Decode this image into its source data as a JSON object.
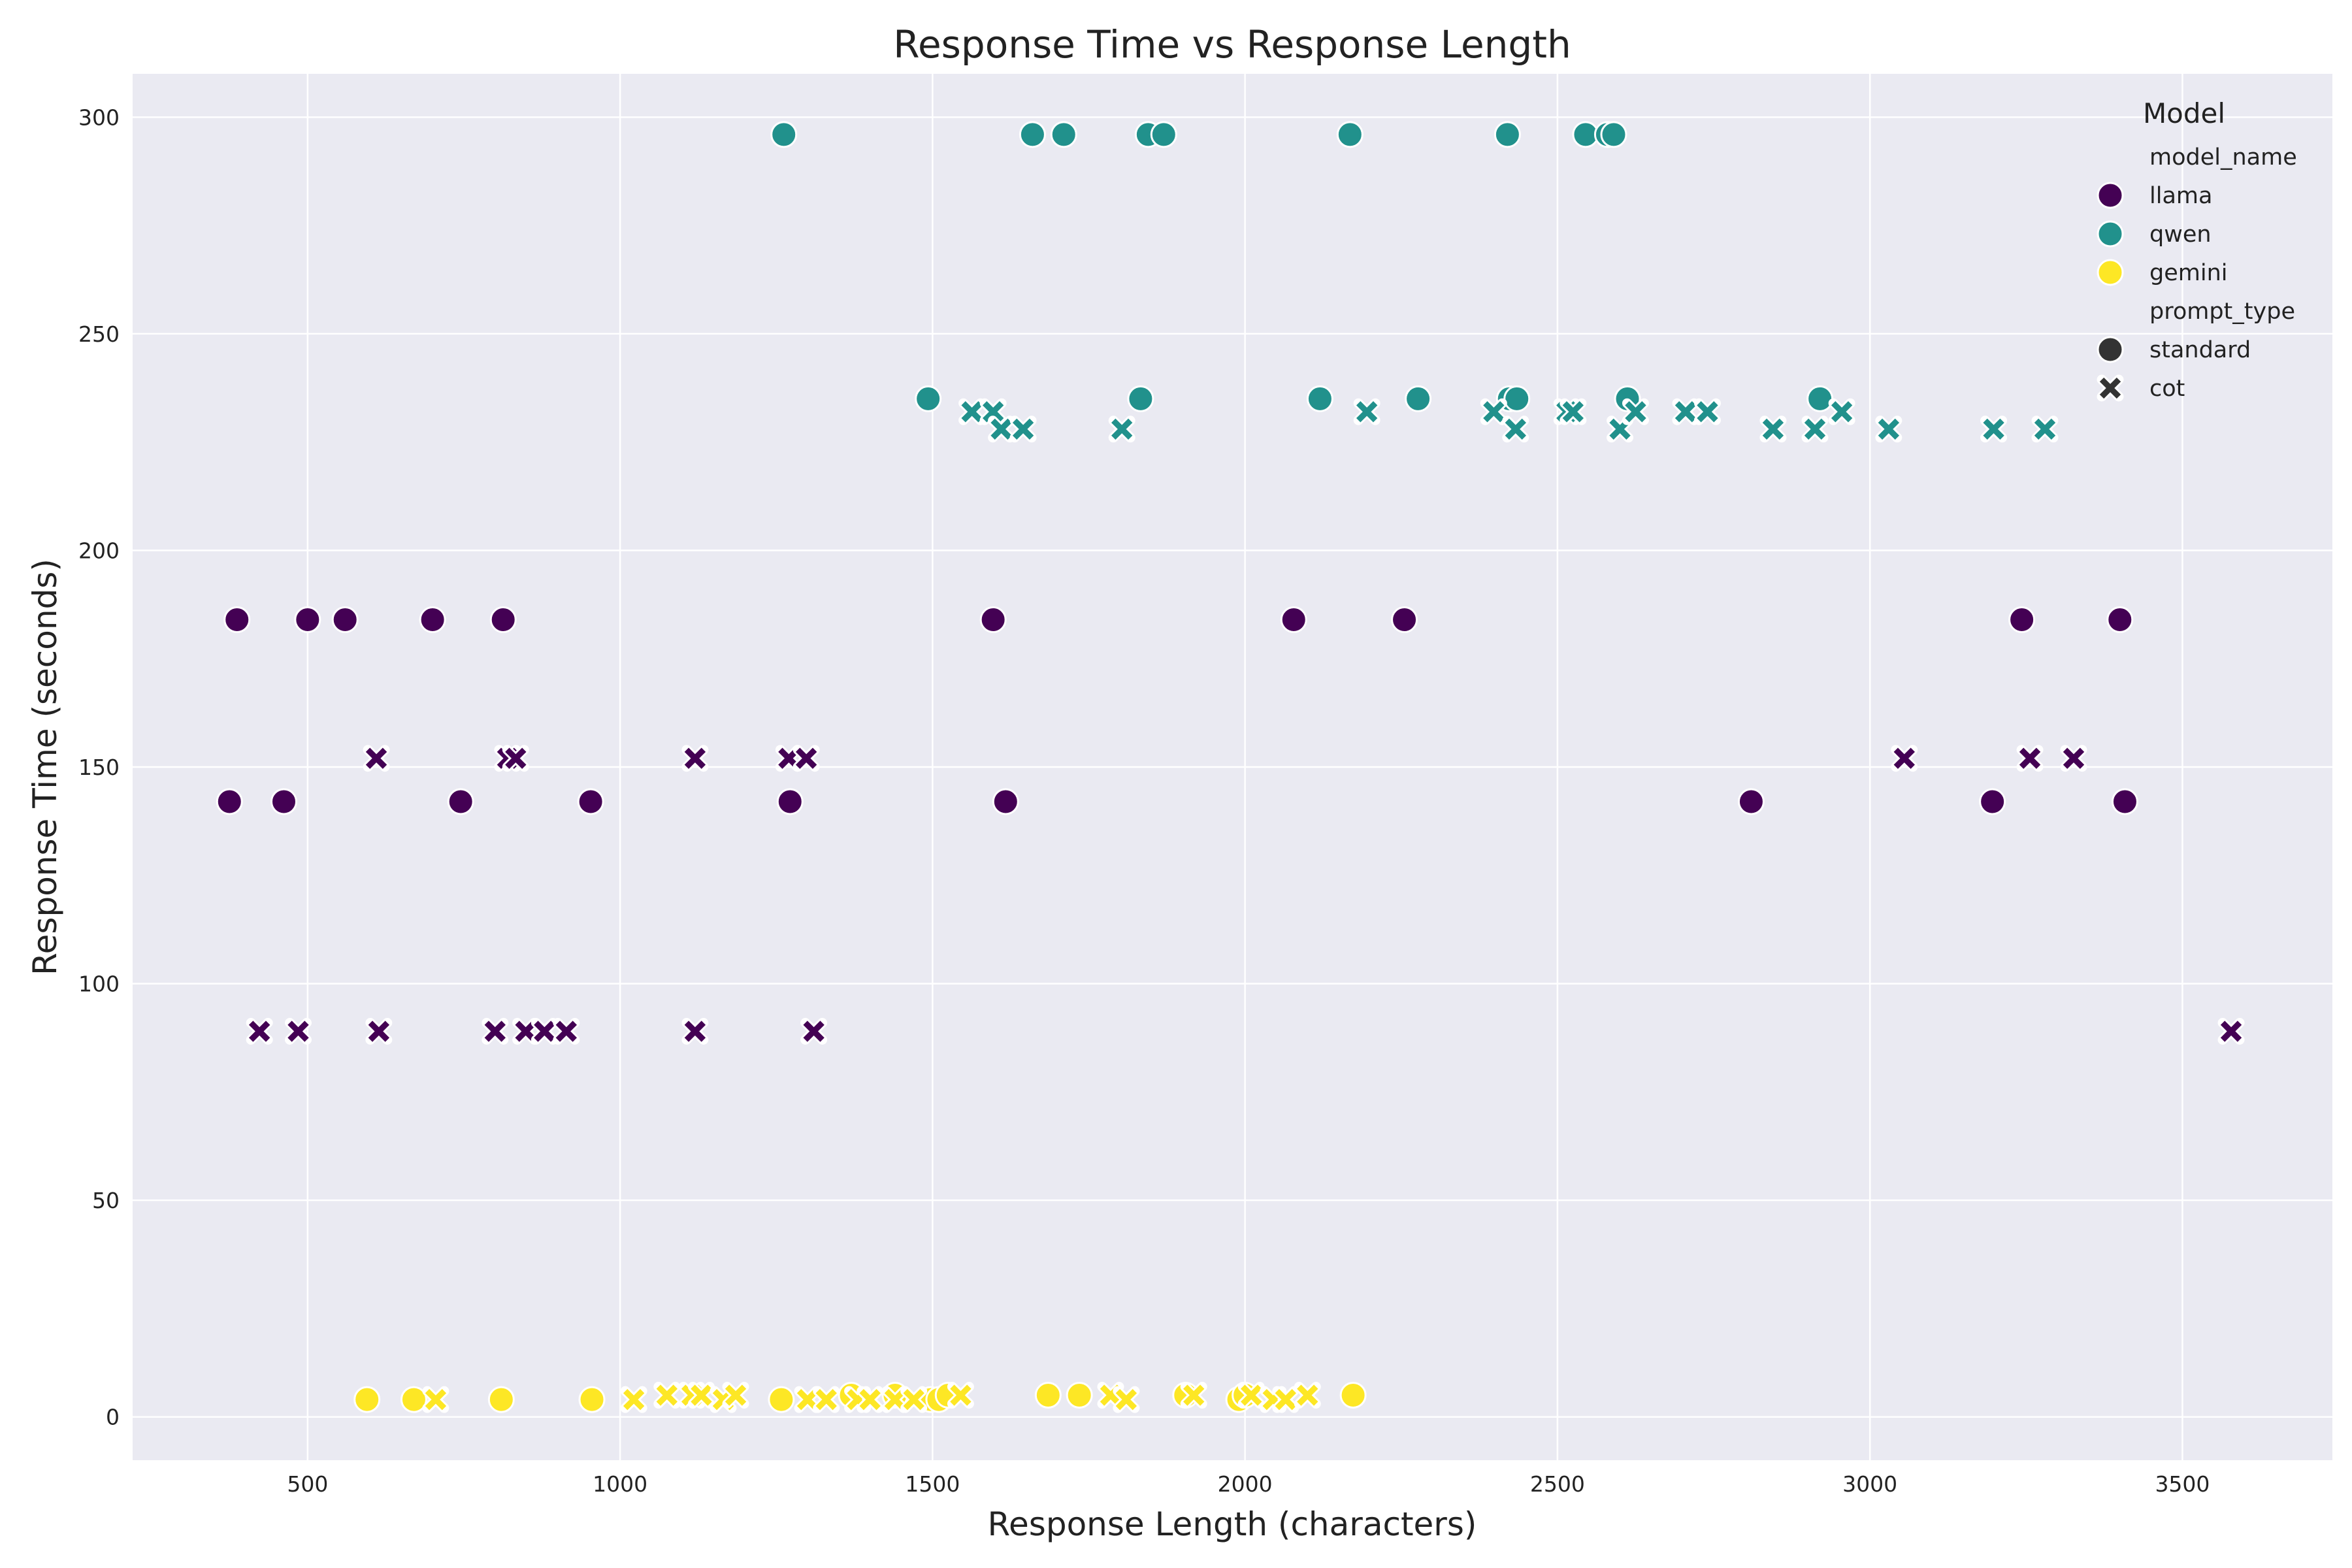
{
  "chart_data": {
    "type": "scatter",
    "title": "Response Time vs Response Length",
    "xlabel": "Response Length (characters)",
    "ylabel": "Response Time (seconds)",
    "xlim": [
      220,
      3740
    ],
    "ylim": [
      -10,
      310
    ],
    "xticks": [
      500,
      1000,
      1500,
      2000,
      2500,
      3000,
      3500
    ],
    "yticks": [
      0,
      50,
      100,
      150,
      200,
      250,
      300
    ],
    "grid": true,
    "legend": {
      "placement": "top-right",
      "title": "Model",
      "hue_header": "model_name",
      "style_header": "prompt_type",
      "hue_entries": [
        "llama",
        "qwen",
        "gemini"
      ],
      "style_entries": [
        "standard",
        "cot"
      ]
    },
    "colors": {
      "llama": "#440154",
      "qwen": "#21918c",
      "gemini": "#fde725",
      "background": "#eaeaf2",
      "grid": "#ffffff",
      "style_legend": "#333333"
    },
    "series": [
      {
        "name": "llama",
        "style": "standard",
        "points": [
          [
            375,
            142
          ],
          [
            387,
            184
          ],
          [
            462,
            142
          ],
          [
            500,
            184
          ],
          [
            560,
            184
          ],
          [
            700,
            184
          ],
          [
            745,
            142
          ],
          [
            813,
            184
          ],
          [
            953,
            142
          ],
          [
            1272,
            142
          ],
          [
            1597,
            184
          ],
          [
            1617,
            142
          ],
          [
            2078,
            184
          ],
          [
            2255,
            184
          ],
          [
            2810,
            142
          ],
          [
            3196,
            142
          ],
          [
            3243,
            184
          ],
          [
            3400,
            184
          ],
          [
            3408,
            142
          ]
        ]
      },
      {
        "name": "llama",
        "style": "cot",
        "points": [
          [
            423,
            89
          ],
          [
            485,
            89
          ],
          [
            610,
            152
          ],
          [
            614,
            89
          ],
          [
            800,
            89
          ],
          [
            820,
            152
          ],
          [
            833,
            152
          ],
          [
            849,
            89
          ],
          [
            879,
            89
          ],
          [
            914,
            89
          ],
          [
            1120,
            152
          ],
          [
            1120,
            89
          ],
          [
            1270,
            152
          ],
          [
            1298,
            152
          ],
          [
            1310,
            89
          ],
          [
            3055,
            152
          ],
          [
            3256,
            152
          ],
          [
            3326,
            152
          ],
          [
            3578,
            89
          ]
        ]
      },
      {
        "name": "qwen",
        "style": "standard",
        "points": [
          [
            1262,
            296
          ],
          [
            1493,
            235
          ],
          [
            1660,
            296
          ],
          [
            1710,
            296
          ],
          [
            1833,
            235
          ],
          [
            1845,
            296
          ],
          [
            1870,
            296
          ],
          [
            2120,
            235
          ],
          [
            2168,
            296
          ],
          [
            2277,
            235
          ],
          [
            2420,
            296
          ],
          [
            2423,
            235
          ],
          [
            2435,
            235
          ],
          [
            2545,
            296
          ],
          [
            2580,
            296
          ],
          [
            2590,
            296
          ],
          [
            2612,
            235
          ],
          [
            2920,
            235
          ]
        ]
      },
      {
        "name": "qwen",
        "style": "cot",
        "points": [
          [
            1563,
            232
          ],
          [
            1597,
            232
          ],
          [
            1610,
            228
          ],
          [
            1645,
            228
          ],
          [
            1803,
            228
          ],
          [
            2195,
            232
          ],
          [
            2398,
            232
          ],
          [
            2433,
            228
          ],
          [
            2515,
            232
          ],
          [
            2525,
            232
          ],
          [
            2600,
            228
          ],
          [
            2625,
            232
          ],
          [
            2705,
            232
          ],
          [
            2740,
            232
          ],
          [
            2845,
            228
          ],
          [
            2912,
            228
          ],
          [
            2955,
            232
          ],
          [
            3030,
            228
          ],
          [
            3198,
            228
          ],
          [
            3280,
            228
          ]
        ]
      },
      {
        "name": "gemini",
        "style": "standard",
        "points": [
          [
            595,
            4
          ],
          [
            670,
            4
          ],
          [
            810,
            4
          ],
          [
            955,
            4
          ],
          [
            1258,
            4
          ],
          [
            1370,
            5
          ],
          [
            1440,
            5
          ],
          [
            1497,
            4
          ],
          [
            1510,
            4
          ],
          [
            1525,
            5
          ],
          [
            1685,
            5
          ],
          [
            1735,
            5
          ],
          [
            1905,
            5
          ],
          [
            1990,
            4
          ],
          [
            2000,
            5
          ],
          [
            2173,
            5
          ]
        ]
      },
      {
        "name": "gemini",
        "style": "cot",
        "points": [
          [
            705,
            4
          ],
          [
            1022,
            4
          ],
          [
            1075,
            5
          ],
          [
            1115,
            5
          ],
          [
            1130,
            5
          ],
          [
            1165,
            4
          ],
          [
            1185,
            5
          ],
          [
            1300,
            4
          ],
          [
            1330,
            4
          ],
          [
            1380,
            4
          ],
          [
            1400,
            4
          ],
          [
            1440,
            4
          ],
          [
            1470,
            4
          ],
          [
            1545,
            5
          ],
          [
            1785,
            5
          ],
          [
            1810,
            4
          ],
          [
            1918,
            5
          ],
          [
            2010,
            5
          ],
          [
            2045,
            4
          ],
          [
            2065,
            4
          ],
          [
            2100,
            5
          ]
        ]
      }
    ]
  }
}
